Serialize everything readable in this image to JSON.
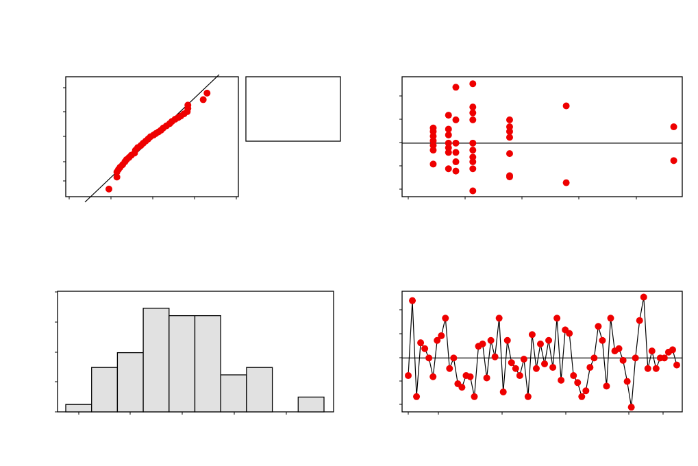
{
  "colors": {
    "points": "#ee0000",
    "bars": "#e1e1e1",
    "axes": "#000000",
    "background": "#ffffff"
  },
  "chart_data": [
    {
      "type": "scatter",
      "id": "normal-probability",
      "xlim": [
        -2.7,
        2.7
      ],
      "ylim": [
        -2.75,
        2.75
      ],
      "reference_line": {
        "x": [
          -2.1,
          2.1
        ],
        "y": [
          -3.0,
          2.85
        ]
      },
      "points": [
        [
          -1.35,
          -2.4
        ],
        [
          -1.1,
          -1.85
        ],
        [
          -1.1,
          -1.62
        ],
        [
          -1.05,
          -1.5
        ],
        [
          -1.0,
          -1.4
        ],
        [
          -0.92,
          -1.28
        ],
        [
          -0.85,
          -1.15
        ],
        [
          -0.8,
          -1.05
        ],
        [
          -0.72,
          -0.95
        ],
        [
          -0.65,
          -0.85
        ],
        [
          -0.55,
          -0.75
        ],
        [
          -0.52,
          -0.62
        ],
        [
          -0.45,
          -0.5
        ],
        [
          -0.35,
          -0.4
        ],
        [
          -0.28,
          -0.3
        ],
        [
          -0.2,
          -0.2
        ],
        [
          -0.12,
          -0.1
        ],
        [
          -0.05,
          0.0
        ],
        [
          0.05,
          0.08
        ],
        [
          0.12,
          0.15
        ],
        [
          0.2,
          0.22
        ],
        [
          0.28,
          0.3
        ],
        [
          0.35,
          0.4
        ],
        [
          0.45,
          0.5
        ],
        [
          0.55,
          0.6
        ],
        [
          0.62,
          0.7
        ],
        [
          0.72,
          0.8
        ],
        [
          0.82,
          0.88
        ],
        [
          0.9,
          0.95
        ],
        [
          1.0,
          1.05
        ],
        [
          1.1,
          1.15
        ],
        [
          1.12,
          1.3
        ],
        [
          1.12,
          1.45
        ],
        [
          1.6,
          1.7
        ],
        [
          1.72,
          2.0
        ]
      ]
    },
    {
      "type": "scatter",
      "id": "residuals-vs-fits",
      "xlim": [
        -0.2,
        4.75
      ],
      "ylim": [
        -2.3,
        2.85
      ],
      "reference_line_y": 0,
      "points": [
        [
          0.35,
          0.65
        ],
        [
          0.35,
          0.5
        ],
        [
          0.35,
          0.3
        ],
        [
          0.35,
          0.1
        ],
        [
          0.35,
          -0.1
        ],
        [
          0.35,
          -0.3
        ],
        [
          0.35,
          -0.9
        ],
        [
          0.62,
          1.2
        ],
        [
          0.62,
          0.6
        ],
        [
          0.62,
          0.35
        ],
        [
          0.62,
          0.0
        ],
        [
          0.62,
          -0.2
        ],
        [
          0.62,
          -0.4
        ],
        [
          0.62,
          -1.1
        ],
        [
          0.75,
          2.4
        ],
        [
          0.75,
          1.0
        ],
        [
          0.75,
          0.0
        ],
        [
          0.75,
          -0.4
        ],
        [
          0.75,
          -0.8
        ],
        [
          0.75,
          -1.2
        ],
        [
          1.05,
          2.55
        ],
        [
          1.05,
          1.55
        ],
        [
          1.05,
          1.3
        ],
        [
          1.05,
          1.0
        ],
        [
          1.05,
          0.0
        ],
        [
          1.05,
          -0.3
        ],
        [
          1.05,
          -0.6
        ],
        [
          1.05,
          -0.8
        ],
        [
          1.05,
          -1.1
        ],
        [
          1.05,
          -2.05
        ],
        [
          1.7,
          1.0
        ],
        [
          1.7,
          0.7
        ],
        [
          1.7,
          0.5
        ],
        [
          1.7,
          0.25
        ],
        [
          1.7,
          -0.45
        ],
        [
          1.7,
          -1.4
        ],
        [
          1.7,
          -1.45
        ],
        [
          2.7,
          1.6
        ],
        [
          2.7,
          -1.7
        ],
        [
          4.6,
          0.7
        ],
        [
          4.6,
          -0.75
        ]
      ]
    },
    {
      "type": "bar",
      "id": "histogram",
      "bins": 10,
      "values": [
        1,
        6,
        8,
        14,
        13,
        13,
        5,
        6,
        0,
        2
      ],
      "ylim": [
        0,
        16.3
      ]
    },
    {
      "type": "line",
      "id": "residuals-vs-order",
      "xlim": [
        0,
        43
      ],
      "ylim": [
        -2.3,
        2.85
      ],
      "reference_line_y": 0,
      "y": [
        -0.75,
        2.45,
        -1.65,
        0.65,
        0.4,
        0.0,
        -0.8,
        0.75,
        0.95,
        1.7,
        -0.45,
        0.0,
        -1.1,
        -1.25,
        -0.75,
        -0.8,
        -1.65,
        0.5,
        0.6,
        -0.85,
        0.75,
        0.05,
        1.7,
        -1.45,
        0.75,
        -0.2,
        -0.45,
        -0.75,
        -0.05,
        -1.65,
        1.0,
        -0.45,
        0.6,
        -0.25,
        0.75,
        -0.4,
        1.7,
        -0.95,
        1.2,
        1.05,
        -0.75,
        -1.05,
        -1.65,
        -1.4,
        -0.4,
        0.0,
        1.35,
        0.75,
        -1.2,
        1.7,
        0.3,
        0.4,
        -0.1,
        -1.0,
        -2.1,
        0.0,
        1.6,
        2.6,
        -0.45,
        0.3,
        -0.45,
        0.0,
        0.0,
        0.25,
        0.35,
        -0.3
      ]
    }
  ]
}
